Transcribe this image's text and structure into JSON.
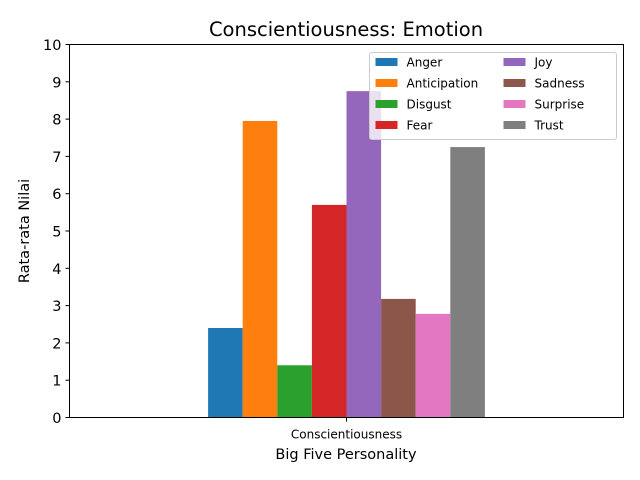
{
  "chart_data": {
    "type": "bar",
    "title": "Conscientiousness: Emotion",
    "xlabel": "Big Five Personality",
    "ylabel": "Rata-rata Nilai",
    "categories": [
      "Conscientiousness"
    ],
    "ylim": [
      0,
      10
    ],
    "yticks": [
      0,
      1,
      2,
      3,
      4,
      5,
      6,
      7,
      8,
      9,
      10
    ],
    "grid": false,
    "legend_position": "top-right",
    "legend_columns": 2,
    "series": [
      {
        "name": "Anger",
        "values": [
          2.4
        ],
        "color": "#1f77b4"
      },
      {
        "name": "Anticipation",
        "values": [
          7.95
        ],
        "color": "#ff7f0e"
      },
      {
        "name": "Disgust",
        "values": [
          1.4
        ],
        "color": "#2ca02c"
      },
      {
        "name": "Fear",
        "values": [
          5.7
        ],
        "color": "#d62728"
      },
      {
        "name": "Joy",
        "values": [
          8.75
        ],
        "color": "#9467bd"
      },
      {
        "name": "Sadness",
        "values": [
          3.18
        ],
        "color": "#8c564b"
      },
      {
        "name": "Surprise",
        "values": [
          2.78
        ],
        "color": "#e377c2"
      },
      {
        "name": "Trust",
        "values": [
          7.25
        ],
        "color": "#7f7f7f"
      }
    ]
  }
}
